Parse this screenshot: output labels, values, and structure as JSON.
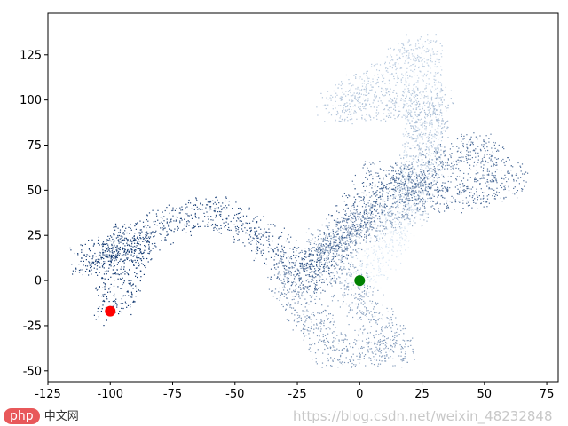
{
  "chart_data": {
    "type": "scatter",
    "title": "",
    "xlabel": "",
    "ylabel": "",
    "xlim": [
      -125,
      79.6
    ],
    "ylim": [
      -56,
      148
    ],
    "xticks": [
      -125,
      -100,
      -75,
      -50,
      -25,
      0,
      25,
      50,
      75
    ],
    "yticks": [
      -50,
      -25,
      0,
      25,
      50,
      75,
      100,
      125
    ],
    "grid": false,
    "colormap": "Blues",
    "colormap_light": "#deebf7",
    "colormap_dark": "#08306b",
    "walk_waypoints": [
      [
        0,
        0
      ],
      [
        10,
        20
      ],
      [
        25,
        60
      ],
      [
        25,
        130
      ],
      [
        -10,
        95
      ],
      [
        30,
        100
      ],
      [
        20,
        40
      ],
      [
        -15,
        20
      ],
      [
        15,
        -40
      ],
      [
        -10,
        -40
      ],
      [
        -30,
        0
      ],
      [
        20,
        50
      ],
      [
        45,
        75
      ],
      [
        60,
        55
      ],
      [
        35,
        45
      ],
      [
        10,
        60
      ],
      [
        -20,
        0
      ],
      [
        -45,
        30
      ],
      [
        -60,
        40
      ],
      [
        -80,
        30
      ],
      [
        -110,
        10
      ],
      [
        -90,
        25
      ],
      [
        -100,
        -17
      ]
    ],
    "start_point": {
      "x": 0,
      "y": 0,
      "color": "#008000"
    },
    "end_point": {
      "x": -100,
      "y": -17,
      "color": "#ff0000"
    }
  },
  "watermark": {
    "logo_text": "php",
    "logo_suffix": "中文网",
    "url": "https://blog.csdn.net/weixin_48232848"
  }
}
